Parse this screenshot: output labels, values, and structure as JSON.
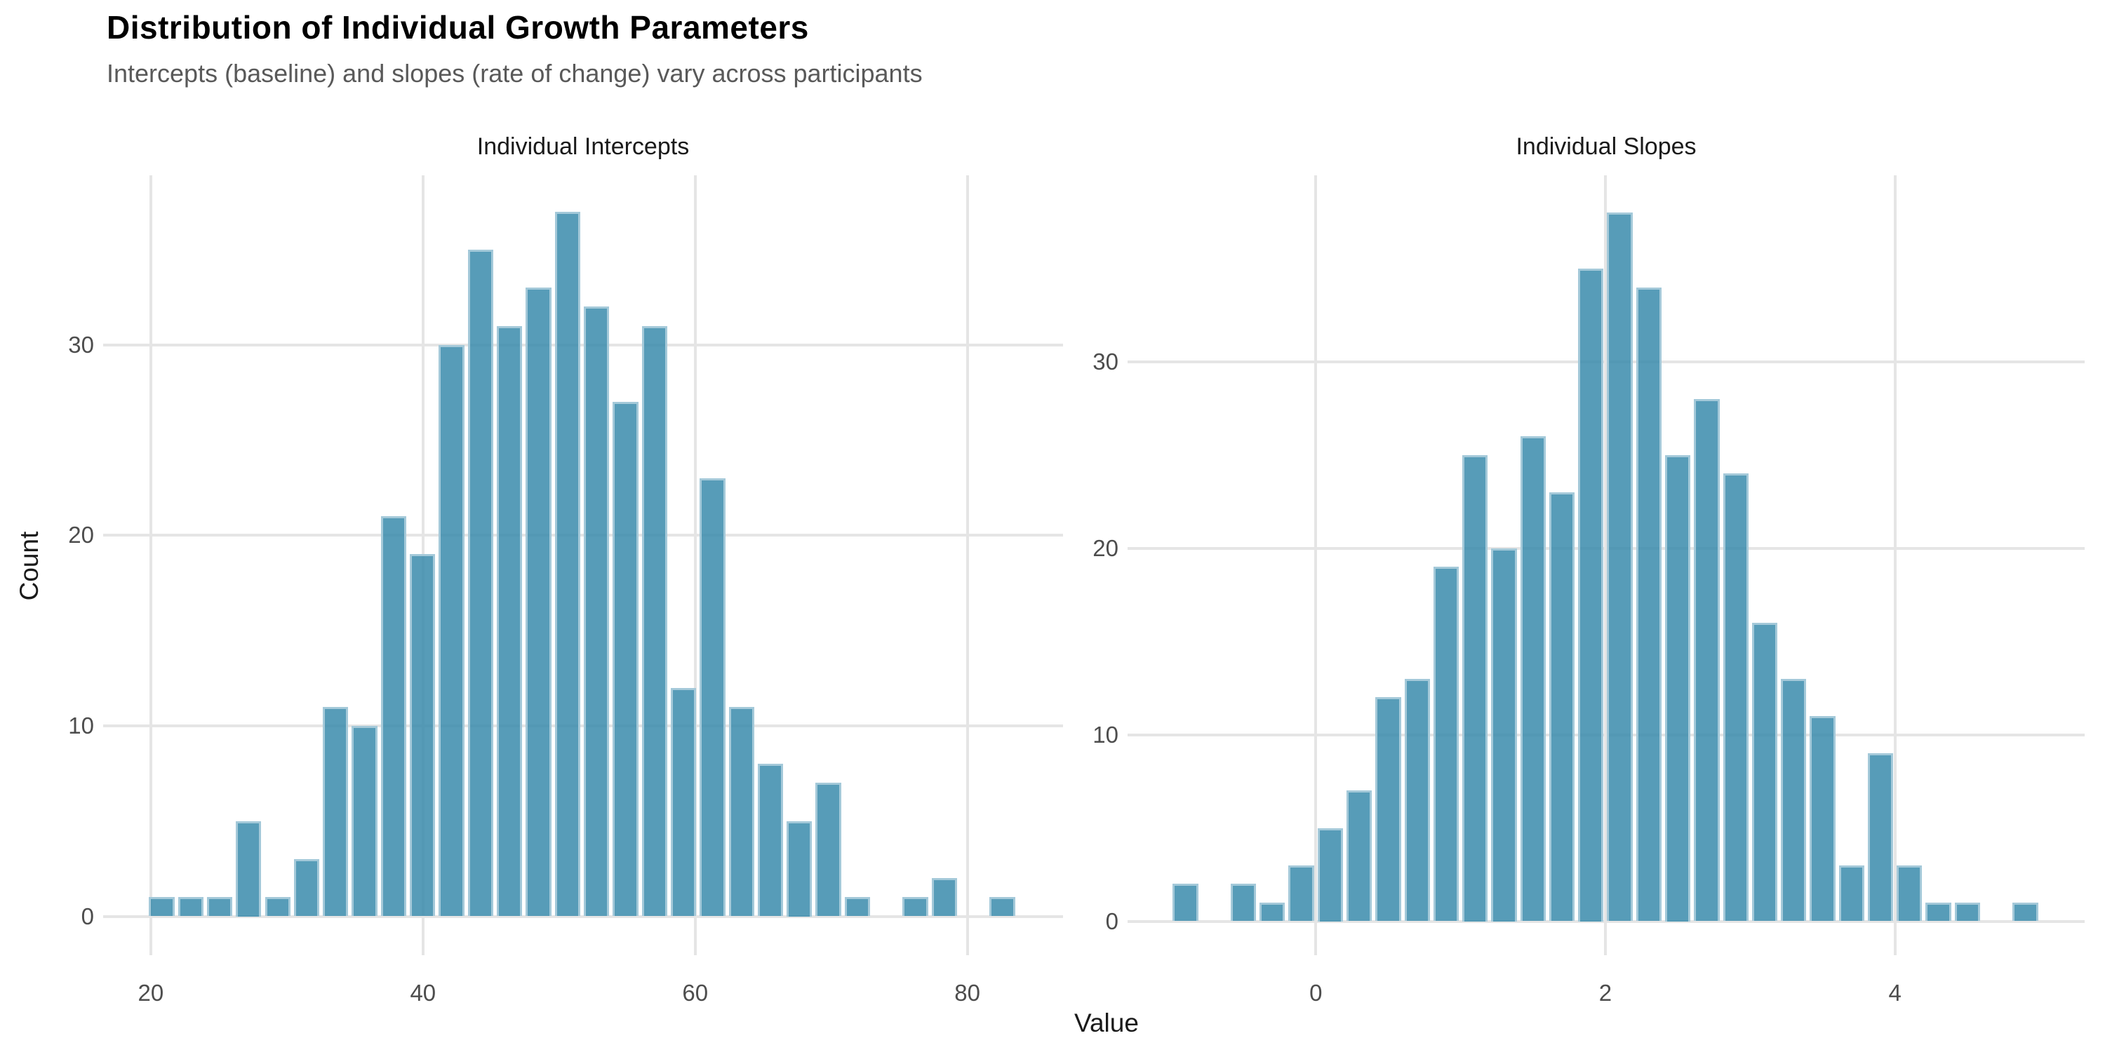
{
  "chart_data": {
    "type": "histogram",
    "title": "Distribution of Individual Growth Parameters",
    "subtitle": "Intercepts (baseline) and slopes (rate of change) vary across participants",
    "xlabel": "Value",
    "ylabel": "Count",
    "grid": "major-only",
    "legend": "none",
    "n_per_panel": 400,
    "y_ticks": [
      0,
      10,
      20,
      30
    ],
    "colors": {
      "bar_fill": "#579cb8",
      "bar_edge": "#adcedd",
      "gridline": "#e5e5e5",
      "tick_label": "#4d4d4d",
      "subtitle": "#595959",
      "title": "#000000",
      "background": "#ffffff"
    },
    "panels": [
      {
        "title": "Individual Intercepts",
        "bin_width": 2.13,
        "x_ticks": [
          20,
          40,
          60,
          80
        ],
        "x_domain": [
          16.5,
          87.03
        ],
        "y_max_units": 38.9,
        "bin_centers": [
          20.8,
          22.93,
          25.06,
          27.19,
          29.32,
          31.45,
          33.58,
          35.71,
          37.84,
          39.97,
          42.1,
          44.23,
          46.36,
          48.49,
          50.62,
          52.75,
          54.88,
          57.01,
          59.14,
          61.27,
          63.4,
          65.53,
          67.66,
          69.79,
          71.92,
          74.05,
          76.18,
          78.31,
          80.44,
          82.57
        ],
        "counts": [
          1,
          1,
          1,
          5,
          1,
          3,
          11,
          10,
          21,
          19,
          30,
          35,
          31,
          33,
          37,
          32,
          27,
          31,
          12,
          23,
          11,
          8,
          5,
          7,
          1,
          0,
          1,
          2,
          0,
          1
        ]
      },
      {
        "title": "Individual Slopes",
        "bin_width": 0.2,
        "x_ticks": [
          0,
          2,
          4
        ],
        "x_domain": [
          -1.3,
          5.31
        ],
        "y_max_units": 40.0,
        "bin_centers": [
          -0.9,
          -0.7,
          -0.5,
          -0.3,
          -0.1,
          0.1,
          0.3,
          0.5,
          0.7,
          0.9,
          1.1,
          1.3,
          1.5,
          1.7,
          1.9,
          2.1,
          2.3,
          2.5,
          2.7,
          2.9,
          3.1,
          3.3,
          3.5,
          3.7,
          3.9,
          4.1,
          4.3,
          4.5,
          4.7,
          4.9
        ],
        "counts": [
          2,
          0,
          2,
          1,
          3,
          5,
          7,
          12,
          13,
          19,
          25,
          20,
          26,
          23,
          35,
          38,
          34,
          25,
          28,
          24,
          16,
          13,
          11,
          3,
          9,
          3,
          1,
          1,
          0,
          1
        ]
      }
    ]
  }
}
